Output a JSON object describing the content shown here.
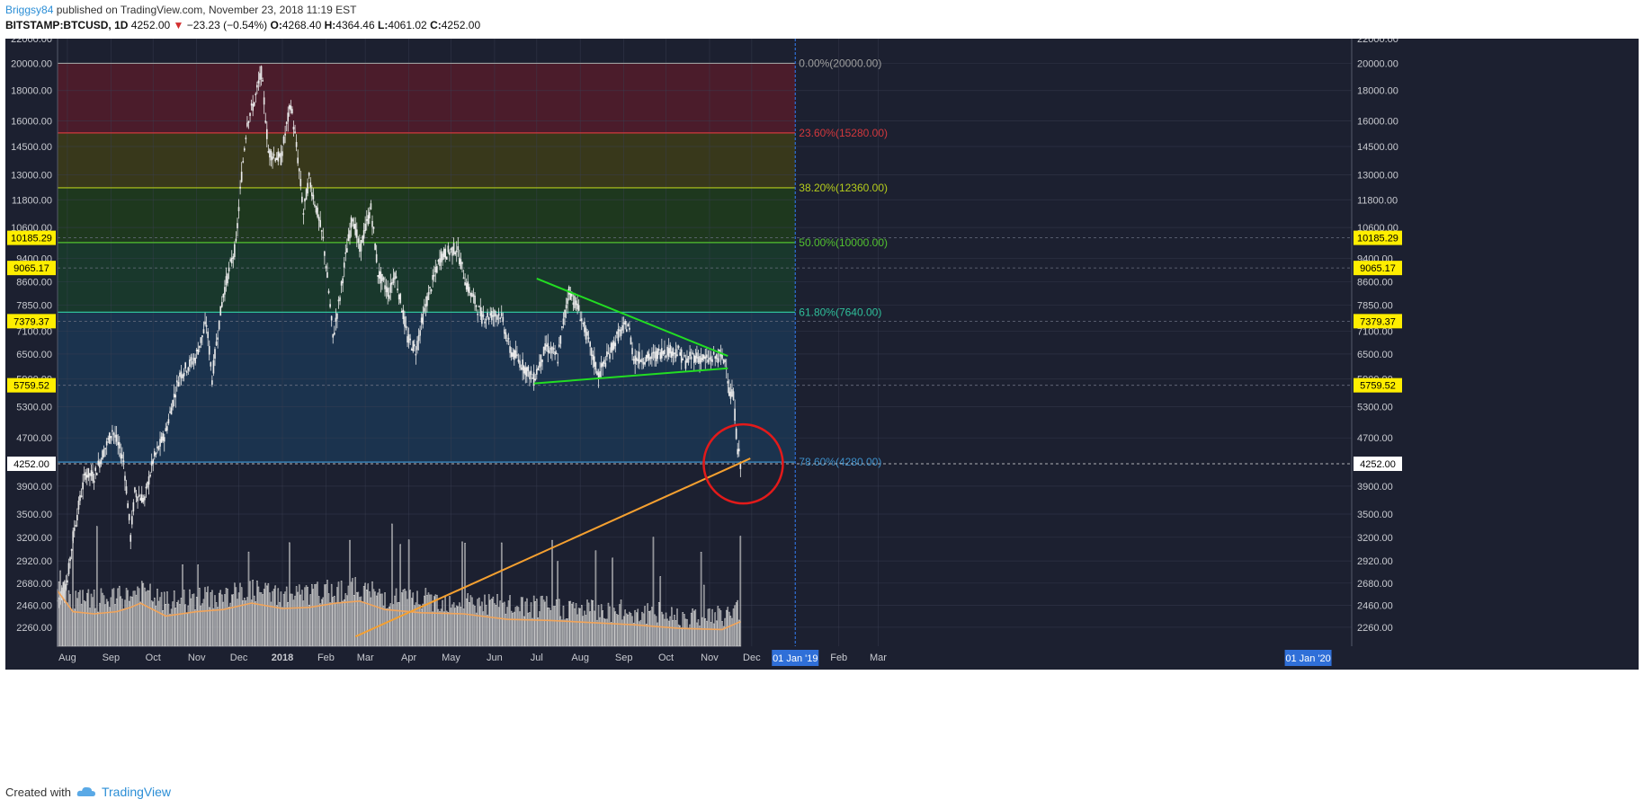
{
  "header": {
    "author": "Briggsy84",
    "published": "published on TradingView.com, November 23, 2018 11:19 EST",
    "symbol": "BITSTAMP:BTCUSD, 1D",
    "last": "4252.00",
    "arrow": "▼",
    "change": "−23.23 (−0.54%)",
    "o_label": "O:",
    "o_value": "4268.40",
    "h_label": "H:",
    "h_value": "4364.46",
    "l_label": "L:",
    "l_value": "4061.02",
    "c_label": "C:",
    "c_value": "4252.00"
  },
  "footer": {
    "created_with": "Created with",
    "brand": "TradingView",
    "logo_icon": "tradingview-cloud-icon"
  },
  "chart_data": {
    "type": "candlestick",
    "background": "#1c2030",
    "y_ticks": [
      "22000.00",
      "20000.00",
      "18000.00",
      "16000.00",
      "14500.00",
      "13000.00",
      "11800.00",
      "10600.00",
      "9400.00",
      "8600.00",
      "7850.00",
      "7100.00",
      "6500.00",
      "5900.00",
      "5300.00",
      "4700.00",
      "3900.00",
      "3500.00",
      "3200.00",
      "2920.00",
      "2680.00",
      "2460.00",
      "2260.00"
    ],
    "y_tick_values": [
      22000,
      20000,
      18000,
      16000,
      14500,
      13000,
      11800,
      10600,
      9400,
      8600,
      7850,
      7100,
      6500,
      5900,
      5300,
      4700,
      3900,
      3500,
      3200,
      2920,
      2680,
      2460,
      2260
    ],
    "x_ticks": [
      "Aug",
      "Sep",
      "Oct",
      "Nov",
      "Dec",
      "2018",
      "Feb",
      "Mar",
      "Apr",
      "May",
      "Jun",
      "Jul",
      "Aug",
      "Sep",
      "Oct",
      "Nov",
      "Dec",
      "Feb",
      "Mar"
    ],
    "x_tick_dates": [
      "2017-08-01",
      "2017-09-01",
      "2017-10-01",
      "2017-11-01",
      "2017-12-01",
      "2018-01-01",
      "2018-02-01",
      "2018-03-01",
      "2018-04-01",
      "2018-05-01",
      "2018-06-01",
      "2018-07-01",
      "2018-08-01",
      "2018-09-01",
      "2018-10-01",
      "2018-11-01",
      "2018-12-01",
      "2019-02-01",
      "2019-03-01"
    ],
    "x_highlight_labels": [
      {
        "date": "2019-01-01",
        "label": "01 Jan '19"
      },
      {
        "date": "2020-01-01",
        "label": "01 Jan '20"
      }
    ],
    "fib_levels": [
      {
        "pct": "0.00%",
        "price": 20000,
        "label": "0.00%(20000.00)",
        "color": "#9e9e9e",
        "fill": "#4e1c2b"
      },
      {
        "pct": "23.60%",
        "price": 15280,
        "label": "23.60%(15280.00)",
        "color": "#d2383d",
        "fill": "#3a3a1a"
      },
      {
        "pct": "38.20%",
        "price": 12360,
        "label": "38.20%(12360.00)",
        "color": "#b5cc1c",
        "fill": "#1f3a1d"
      },
      {
        "pct": "50.00%",
        "price": 10000,
        "label": "50.00%(10000.00)",
        "color": "#52c22f",
        "fill": "#193a2c"
      },
      {
        "pct": "61.80%",
        "price": 7640,
        "label": "61.80%(7640.00)",
        "color": "#2fbf9a",
        "fill": "#1b3550"
      },
      {
        "pct": "78.60%",
        "price": 4280,
        "label": "78.60%(4280.00)",
        "color": "#3d8fc9",
        "fill": ""
      }
    ],
    "price_tags": [
      "10185.29",
      "9065.17",
      "7379.37",
      "5759.52",
      "4252.00"
    ],
    "price_tag_values": [
      10185.29,
      9065.17,
      7379.37,
      5759.52,
      4252.0
    ],
    "last_price": 4252.0,
    "trendlines": {
      "triangle_upper": {
        "points": [
          [
            "2018-07-01",
            8700
          ],
          [
            "2018-11-14",
            6450
          ]
        ],
        "color": "#22dd22"
      },
      "triangle_lower": {
        "points": [
          [
            "2018-06-29",
            5800
          ],
          [
            "2018-11-14",
            6150
          ]
        ],
        "color": "#22dd22"
      },
      "long_support": {
        "points": [
          [
            "2018-02-22",
            2180
          ],
          [
            "2018-11-30",
            4340
          ]
        ],
        "color": "#f5a030"
      }
    },
    "circle_annotation": {
      "date": "2018-11-25",
      "price": 4250,
      "color": "#e31a1a"
    },
    "price_path": [
      [
        "2017-07-25",
        2500
      ],
      [
        "2017-08-01",
        2700
      ],
      [
        "2017-08-05",
        3200
      ],
      [
        "2017-08-14",
        4100
      ],
      [
        "2017-08-20",
        4050
      ],
      [
        "2017-08-31",
        4700
      ],
      [
        "2017-09-02",
        4850
      ],
      [
        "2017-09-10",
        4300
      ],
      [
        "2017-09-15",
        3200
      ],
      [
        "2017-09-18",
        3800
      ],
      [
        "2017-09-25",
        3700
      ],
      [
        "2017-10-01",
        4300
      ],
      [
        "2017-10-10",
        4800
      ],
      [
        "2017-10-20",
        6000
      ],
      [
        "2017-10-31",
        6400
      ],
      [
        "2017-11-08",
        7300
      ],
      [
        "2017-11-12",
        5900
      ],
      [
        "2017-11-20",
        8200
      ],
      [
        "2017-11-29",
        9900
      ],
      [
        "2017-12-07",
        16000
      ],
      [
        "2017-12-12",
        17200
      ],
      [
        "2017-12-17",
        19300
      ],
      [
        "2017-12-22",
        14200
      ],
      [
        "2017-12-31",
        13800
      ],
      [
        "2018-01-07",
        17100
      ],
      [
        "2018-01-16",
        11200
      ],
      [
        "2018-01-20",
        12800
      ],
      [
        "2018-01-30",
        10100
      ],
      [
        "2018-02-06",
        6900
      ],
      [
        "2018-02-11",
        8100
      ],
      [
        "2018-02-20",
        11100
      ],
      [
        "2018-02-25",
        9700
      ],
      [
        "2018-03-05",
        11400
      ],
      [
        "2018-03-10",
        8900
      ],
      [
        "2018-03-18",
        8200
      ],
      [
        "2018-03-22",
        8900
      ],
      [
        "2018-03-31",
        6900
      ],
      [
        "2018-04-06",
        6600
      ],
      [
        "2018-04-14",
        8000
      ],
      [
        "2018-04-24",
        9500
      ],
      [
        "2018-05-05",
        9800
      ],
      [
        "2018-05-12",
        8500
      ],
      [
        "2018-05-23",
        7500
      ],
      [
        "2018-06-05",
        7600
      ],
      [
        "2018-06-12",
        6600
      ],
      [
        "2018-06-24",
        6100
      ],
      [
        "2018-06-29",
        5900
      ],
      [
        "2018-07-08",
        6700
      ],
      [
        "2018-07-16",
        6400
      ],
      [
        "2018-07-24",
        8300
      ],
      [
        "2018-07-31",
        7700
      ],
      [
        "2018-08-10",
        6400
      ],
      [
        "2018-08-14",
        6000
      ],
      [
        "2018-08-20",
        6400
      ],
      [
        "2018-08-28",
        7000
      ],
      [
        "2018-09-04",
        7300
      ],
      [
        "2018-09-08",
        6400
      ],
      [
        "2018-09-20",
        6400
      ],
      [
        "2018-09-30",
        6600
      ],
      [
        "2018-10-10",
        6550
      ],
      [
        "2018-10-15",
        6300
      ],
      [
        "2018-10-20",
        6450
      ],
      [
        "2018-10-31",
        6350
      ],
      [
        "2018-11-08",
        6450
      ],
      [
        "2018-11-13",
        6300
      ],
      [
        "2018-11-15",
        5600
      ],
      [
        "2018-11-18",
        5500
      ],
      [
        "2018-11-20",
        4800
      ],
      [
        "2018-11-21",
        4500
      ],
      [
        "2018-11-22",
        4400
      ],
      [
        "2018-11-23",
        4252
      ]
    ],
    "volume_path": [
      [
        "2017-07-25",
        2600
      ],
      [
        "2017-08-05",
        2400
      ],
      [
        "2017-08-20",
        2380
      ],
      [
        "2017-09-05",
        2400
      ],
      [
        "2017-09-15",
        2440
      ],
      [
        "2017-09-22",
        2480
      ],
      [
        "2017-10-10",
        2360
      ],
      [
        "2017-11-01",
        2400
      ],
      [
        "2017-11-20",
        2420
      ],
      [
        "2017-12-10",
        2480
      ],
      [
        "2018-01-01",
        2430
      ],
      [
        "2018-01-20",
        2440
      ],
      [
        "2018-02-08",
        2480
      ],
      [
        "2018-02-25",
        2500
      ],
      [
        "2018-03-15",
        2420
      ],
      [
        "2018-04-10",
        2390
      ],
      [
        "2018-05-10",
        2380
      ],
      [
        "2018-06-10",
        2330
      ],
      [
        "2018-07-10",
        2320
      ],
      [
        "2018-08-10",
        2300
      ],
      [
        "2018-09-10",
        2280
      ],
      [
        "2018-10-10",
        2250
      ],
      [
        "2018-11-10",
        2240
      ],
      [
        "2018-11-23",
        2310
      ]
    ],
    "xlim": [
      "2017-07-25",
      "2020-02-01"
    ],
    "ylim": [
      2100,
      22000
    ],
    "scale": "log",
    "grid": true,
    "legend": "none"
  }
}
